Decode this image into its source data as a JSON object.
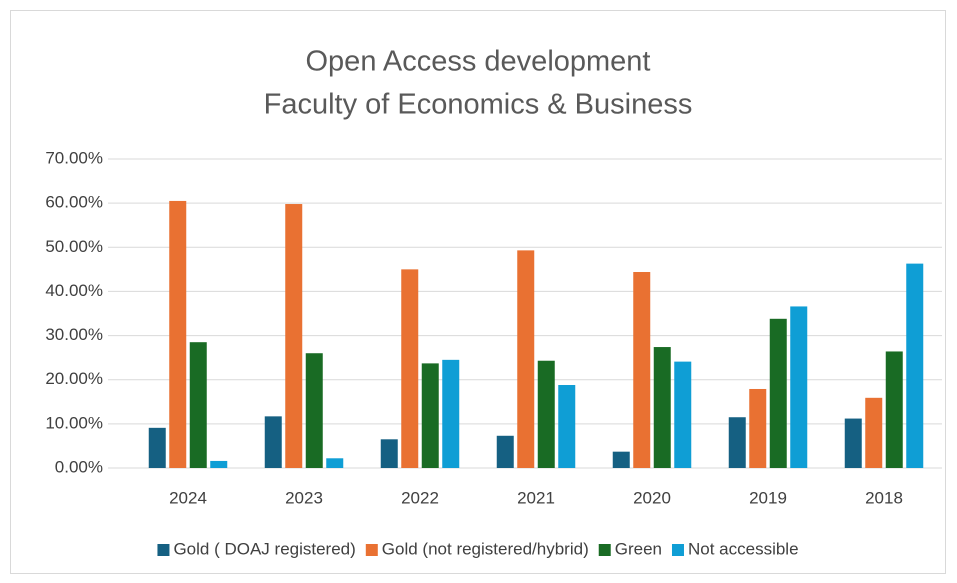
{
  "chart_data": {
    "type": "bar",
    "title": [
      "Open Access development",
      "Faculty of Economics & Business"
    ],
    "categories": [
      "2024",
      "2023",
      "2022",
      "2021",
      "2020",
      "2019",
      "2018"
    ],
    "series": [
      {
        "name": "Gold ( DOAJ registered)",
        "color": "#156082",
        "values": [
          9.1,
          11.7,
          6.5,
          7.3,
          3.7,
          11.5,
          11.2
        ]
      },
      {
        "name": "Gold (not registered/hybrid)",
        "color": "#e97132",
        "values": [
          60.5,
          59.8,
          45.0,
          49.3,
          44.4,
          17.9,
          15.9
        ]
      },
      {
        "name": "Green",
        "color": "#196b24",
        "values": [
          28.5,
          26.0,
          23.7,
          24.3,
          27.4,
          33.8,
          26.4
        ]
      },
      {
        "name": "Not accessible",
        "color": "#0f9ed5",
        "values": [
          1.6,
          2.2,
          24.5,
          18.8,
          24.1,
          36.6,
          46.3
        ]
      }
    ],
    "ylim": [
      0,
      70
    ],
    "yticks": [
      {
        "value": 0,
        "label": "0.00%"
      },
      {
        "value": 10,
        "label": "10.00%"
      },
      {
        "value": 20,
        "label": "20.00%"
      },
      {
        "value": 30,
        "label": "30.00%"
      },
      {
        "value": 40,
        "label": "40.00%"
      },
      {
        "value": 50,
        "label": "50.00%"
      },
      {
        "value": 60,
        "label": "60.00%"
      },
      {
        "value": 70,
        "label": "70.00%"
      }
    ],
    "grid": true,
    "legend": "bottom"
  }
}
